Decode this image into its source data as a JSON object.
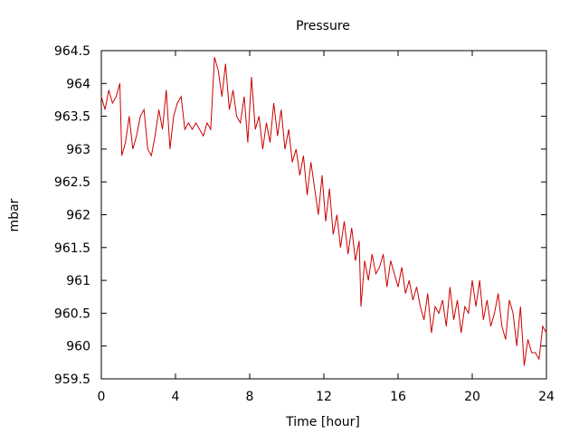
{
  "chart_data": {
    "type": "line",
    "title": "Pressure",
    "xlabel": "Time [hour]",
    "ylabel": "mbar",
    "xlim": [
      0,
      24
    ],
    "ylim": [
      959.5,
      964.5
    ],
    "xticks": [
      0,
      4,
      8,
      12,
      16,
      20,
      24
    ],
    "yticks": [
      959.5,
      960,
      960.5,
      961,
      961.5,
      962,
      962.5,
      963,
      963.5,
      964,
      964.5
    ],
    "ytick_labels": [
      "959.5",
      "960",
      "960.5",
      "961",
      "961.5",
      "962",
      "962.5",
      "963",
      "963.5",
      "964",
      "964.5"
    ],
    "grid": false,
    "line_color": "#cc0000",
    "series": [
      {
        "x": [
          0.0,
          0.2,
          0.4,
          0.6,
          0.8,
          1.0,
          1.1,
          1.3,
          1.5,
          1.7,
          1.9,
          2.1,
          2.3,
          2.5,
          2.7,
          2.9,
          3.1,
          3.3,
          3.5,
          3.7,
          3.9,
          4.1,
          4.3,
          4.5,
          4.7,
          4.9,
          5.1,
          5.3,
          5.5,
          5.7,
          5.9,
          6.1,
          6.3,
          6.5,
          6.7,
          6.9,
          7.1,
          7.3,
          7.5,
          7.7,
          7.9,
          8.1,
          8.3,
          8.5,
          8.7,
          8.9,
          9.1,
          9.3,
          9.5,
          9.7,
          9.9,
          10.1,
          10.3,
          10.5,
          10.7,
          10.9,
          11.1,
          11.3,
          11.5,
          11.7,
          11.9,
          12.1,
          12.3,
          12.5,
          12.7,
          12.9,
          13.1,
          13.3,
          13.5,
          13.7,
          13.9,
          14.0,
          14.2,
          14.4,
          14.6,
          14.8,
          15.0,
          15.2,
          15.4,
          15.6,
          15.8,
          16.0,
          16.2,
          16.4,
          16.6,
          16.8,
          17.0,
          17.2,
          17.4,
          17.6,
          17.8,
          18.0,
          18.2,
          18.4,
          18.6,
          18.8,
          19.0,
          19.2,
          19.4,
          19.6,
          19.8,
          20.0,
          20.2,
          20.4,
          20.6,
          20.8,
          21.0,
          21.2,
          21.4,
          21.6,
          21.8,
          22.0,
          22.2,
          22.4,
          22.6,
          22.8,
          23.0,
          23.2,
          23.4,
          23.6,
          23.8,
          24.0
        ],
        "y": [
          963.8,
          963.6,
          963.9,
          963.7,
          963.8,
          964.0,
          962.9,
          963.1,
          963.5,
          963.0,
          963.2,
          963.5,
          963.6,
          963.0,
          962.9,
          963.2,
          963.6,
          963.3,
          963.9,
          963.0,
          963.5,
          963.7,
          963.8,
          963.3,
          963.4,
          963.3,
          963.4,
          963.3,
          963.2,
          963.4,
          963.3,
          964.4,
          964.2,
          963.8,
          964.3,
          963.6,
          963.9,
          963.5,
          963.4,
          963.8,
          963.1,
          964.1,
          963.3,
          963.5,
          963.0,
          963.4,
          963.1,
          963.7,
          963.2,
          963.6,
          963.0,
          963.3,
          962.8,
          963.0,
          962.6,
          962.9,
          962.3,
          962.8,
          962.4,
          962.0,
          962.6,
          961.9,
          962.4,
          961.7,
          962.0,
          961.5,
          961.9,
          961.4,
          961.8,
          961.3,
          961.6,
          960.6,
          961.3,
          961.0,
          961.4,
          961.1,
          961.2,
          961.4,
          960.9,
          961.3,
          961.1,
          960.9,
          961.2,
          960.8,
          961.0,
          960.7,
          960.9,
          960.6,
          960.4,
          960.8,
          960.2,
          960.6,
          960.5,
          960.7,
          960.3,
          960.9,
          960.4,
          960.7,
          960.2,
          960.6,
          960.5,
          961.0,
          960.6,
          961.0,
          960.4,
          960.7,
          960.3,
          960.5,
          960.8,
          960.3,
          960.1,
          960.7,
          960.5,
          960.0,
          960.6,
          959.7,
          960.1,
          959.9,
          959.9,
          959.8,
          960.3,
          960.2
        ]
      }
    ]
  }
}
